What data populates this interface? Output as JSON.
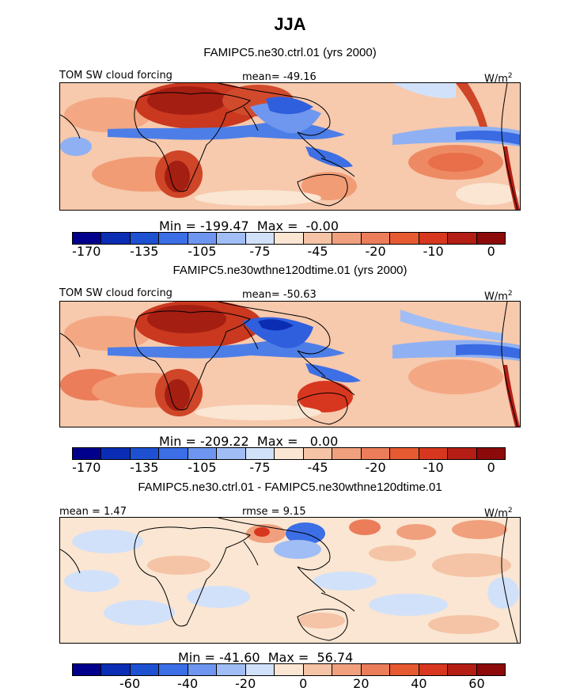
{
  "figure": {
    "title": "JJA"
  },
  "chart_data": [
    {
      "type": "heatmap",
      "title": "FAMIPC5.ne30.ctrl.01 (yrs 2000)",
      "variable_label": "TOM SW cloud forcing",
      "mean_label": "mean= -49.16",
      "units_label": "W/m",
      "units_sup": "2",
      "minmax_label": "Min = -199.47  Max =  -0.00",
      "colorbar_ticks": [
        "-170",
        "-135",
        "-105",
        "-75",
        "-45",
        "-20",
        "-10",
        "0"
      ],
      "colors": [
        "#00008c",
        "#0a2db4",
        "#1e50d2",
        "#3c6ee6",
        "#6e96f0",
        "#a0bef5",
        "#d2e1fa",
        "#fae6d2",
        "#f5c3a5",
        "#f0a07d",
        "#eb7d5a",
        "#e65a32",
        "#d7371e",
        "#b41e14",
        "#8c0a0a"
      ]
    },
    {
      "type": "heatmap",
      "title": "FAMIPC5.ne30wthne120dtime.01 (yrs 2000)",
      "variable_label": "TOM SW cloud forcing",
      "mean_label": "mean= -50.63",
      "units_label": "W/m",
      "units_sup": "2",
      "minmax_label": "Min = -209.22  Max =   0.00",
      "colorbar_ticks": [
        "-170",
        "-135",
        "-105",
        "-75",
        "-45",
        "-20",
        "-10",
        "0"
      ],
      "colors": [
        "#00008c",
        "#0a2db4",
        "#1e50d2",
        "#3c6ee6",
        "#6e96f0",
        "#a0bef5",
        "#d2e1fa",
        "#fae6d2",
        "#f5c3a5",
        "#f0a07d",
        "#eb7d5a",
        "#e65a32",
        "#d7371e",
        "#b41e14",
        "#8c0a0a"
      ]
    },
    {
      "type": "heatmap",
      "title": "FAMIPC5.ne30.ctrl.01 - FAMIPC5.ne30wthne120dtime.01",
      "mean_label": "mean =   1.47",
      "rmse_label": "rmse =   9.15",
      "units_label": "W/m",
      "units_sup": "2",
      "minmax_label": "Min = -41.60  Max =  56.74",
      "colorbar_ticks": [
        "-60",
        "-40",
        "-20",
        "0",
        "20",
        "40",
        "60"
      ],
      "colors": [
        "#00008c",
        "#0a2db4",
        "#1e50d2",
        "#3c6ee6",
        "#6e96f0",
        "#a0bef5",
        "#d2e1fa",
        "#fae6d2",
        "#f5c3a5",
        "#f0a07d",
        "#eb7d5a",
        "#e65a32",
        "#d7371e",
        "#b41e14",
        "#8c0a0a"
      ]
    }
  ]
}
